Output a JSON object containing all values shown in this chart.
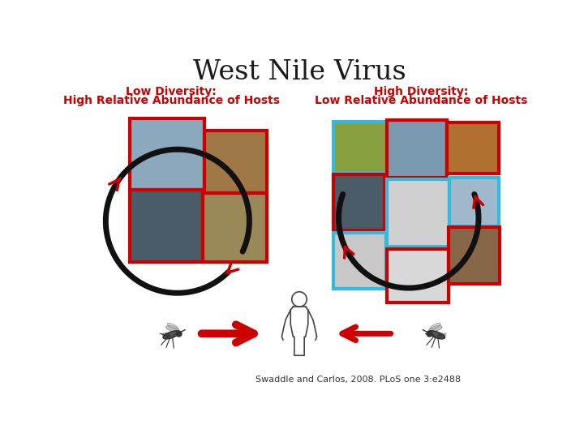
{
  "title": "West Nile Virus",
  "title_fontsize": 24,
  "title_color": "#1a1a1a",
  "left_label_line1": "Low Diversity:",
  "left_label_line2": "High Relative Abundance of Hosts",
  "right_label_line1": "High Diversity:",
  "right_label_line2": "Low Relative Abundance of Hosts",
  "label_color": "#cc0000",
  "label_fontsize": 10,
  "citation": "Swaddle and Carlos, 2008. PLoS one 3:e2488",
  "citation_fontsize": 8,
  "citation_color": "#333333",
  "bg_color": "#ffffff",
  "red": "#cc0000",
  "black": "#111111",
  "cyan": "#33bbdd",
  "lw_circle": 5,
  "lw_border": 3
}
